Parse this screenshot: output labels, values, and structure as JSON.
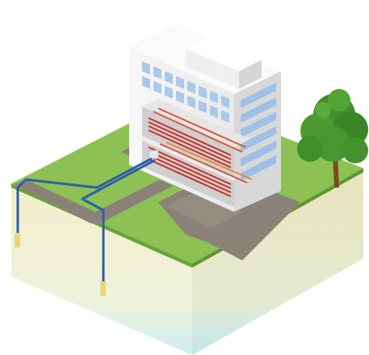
{
  "scene": {
    "subject": "building-with-ground-source-heat-pump",
    "colors": {
      "grass": "#8cc152",
      "grass_dark": "#6fa83c",
      "soil_top": "#f2ecc8",
      "soil_bottom": "#d9f0f2",
      "soil_side_dark": "#e6e0b8",
      "path": "#8a8178",
      "building_light": "#f4f4f4",
      "building_shade": "#d9d9d9",
      "window": "#a9c8ea",
      "pipe_blue": "#2f5fa8",
      "pipe_red": "#c8302a",
      "probe_yellow": "#e8d77a",
      "tree_green": "#3f8f2a",
      "tree_trunk": "#7a4a22"
    },
    "ground_probes": 2,
    "heating_floors": 2,
    "icons": [
      "building-icon",
      "tree-icon",
      "ground-probe-icon",
      "heating-coil-icon"
    ]
  }
}
